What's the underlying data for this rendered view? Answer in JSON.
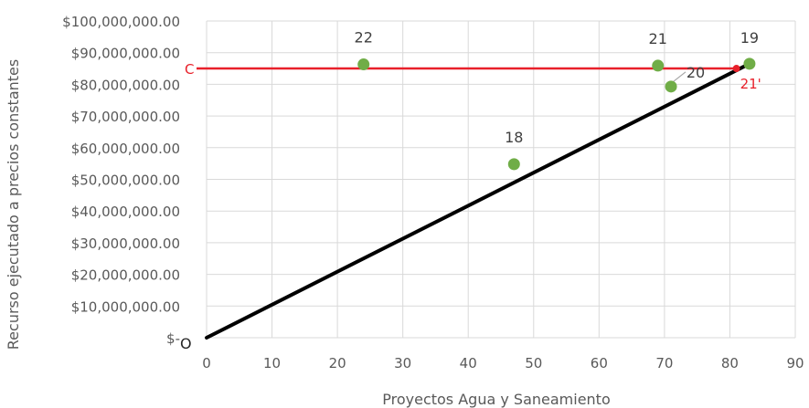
{
  "chart_data": {
    "type": "scatter",
    "xlabel": "Proyectos Agua y Saneamiento",
    "ylabel": "Recurso ejecutado a precios constantes",
    "xlim": [
      0,
      90
    ],
    "ylim": [
      0,
      100000000
    ],
    "x_ticks": [
      0,
      10,
      20,
      30,
      40,
      50,
      60,
      70,
      80,
      90
    ],
    "x_tick_labels": [
      "0",
      "10",
      "20",
      "30",
      "40",
      "50",
      "60",
      "70",
      "80",
      "90"
    ],
    "y_ticks": [
      0,
      10000000,
      20000000,
      30000000,
      40000000,
      50000000,
      60000000,
      70000000,
      80000000,
      90000000,
      100000000
    ],
    "y_tick_labels": [
      "$-",
      "$10,000,000.00",
      "$20,000,000.00",
      "$30,000,000.00",
      "$40,000,000.00",
      "$50,000,000.00",
      "$60,000,000.00",
      "$70,000,000.00",
      "$80,000,000.00",
      "$90,000,000.00",
      "$100,000,000.00"
    ],
    "grid": true,
    "colors": {
      "points": "#70ad47",
      "diagonal": "#000000",
      "level_line": "#e8202a",
      "grid": "#d9d9d9",
      "text": "#595959"
    },
    "points": [
      {
        "label": "22",
        "x": 24,
        "y": 86300000
      },
      {
        "label": "18",
        "x": 47,
        "y": 54800000
      },
      {
        "label": "21",
        "x": 69,
        "y": 85900000
      },
      {
        "label": "20",
        "x": 71,
        "y": 79300000
      },
      {
        "label": "19",
        "x": 83,
        "y": 86500000
      }
    ],
    "diagonal_line": {
      "from": [
        0,
        0
      ],
      "to": [
        83,
        86500000
      ]
    },
    "level_line": {
      "label": "C",
      "y": 85000000,
      "x_end": 81
    },
    "projected_point": {
      "label": "21'",
      "x": 81,
      "y": 85000000
    },
    "origin_label": "O"
  }
}
